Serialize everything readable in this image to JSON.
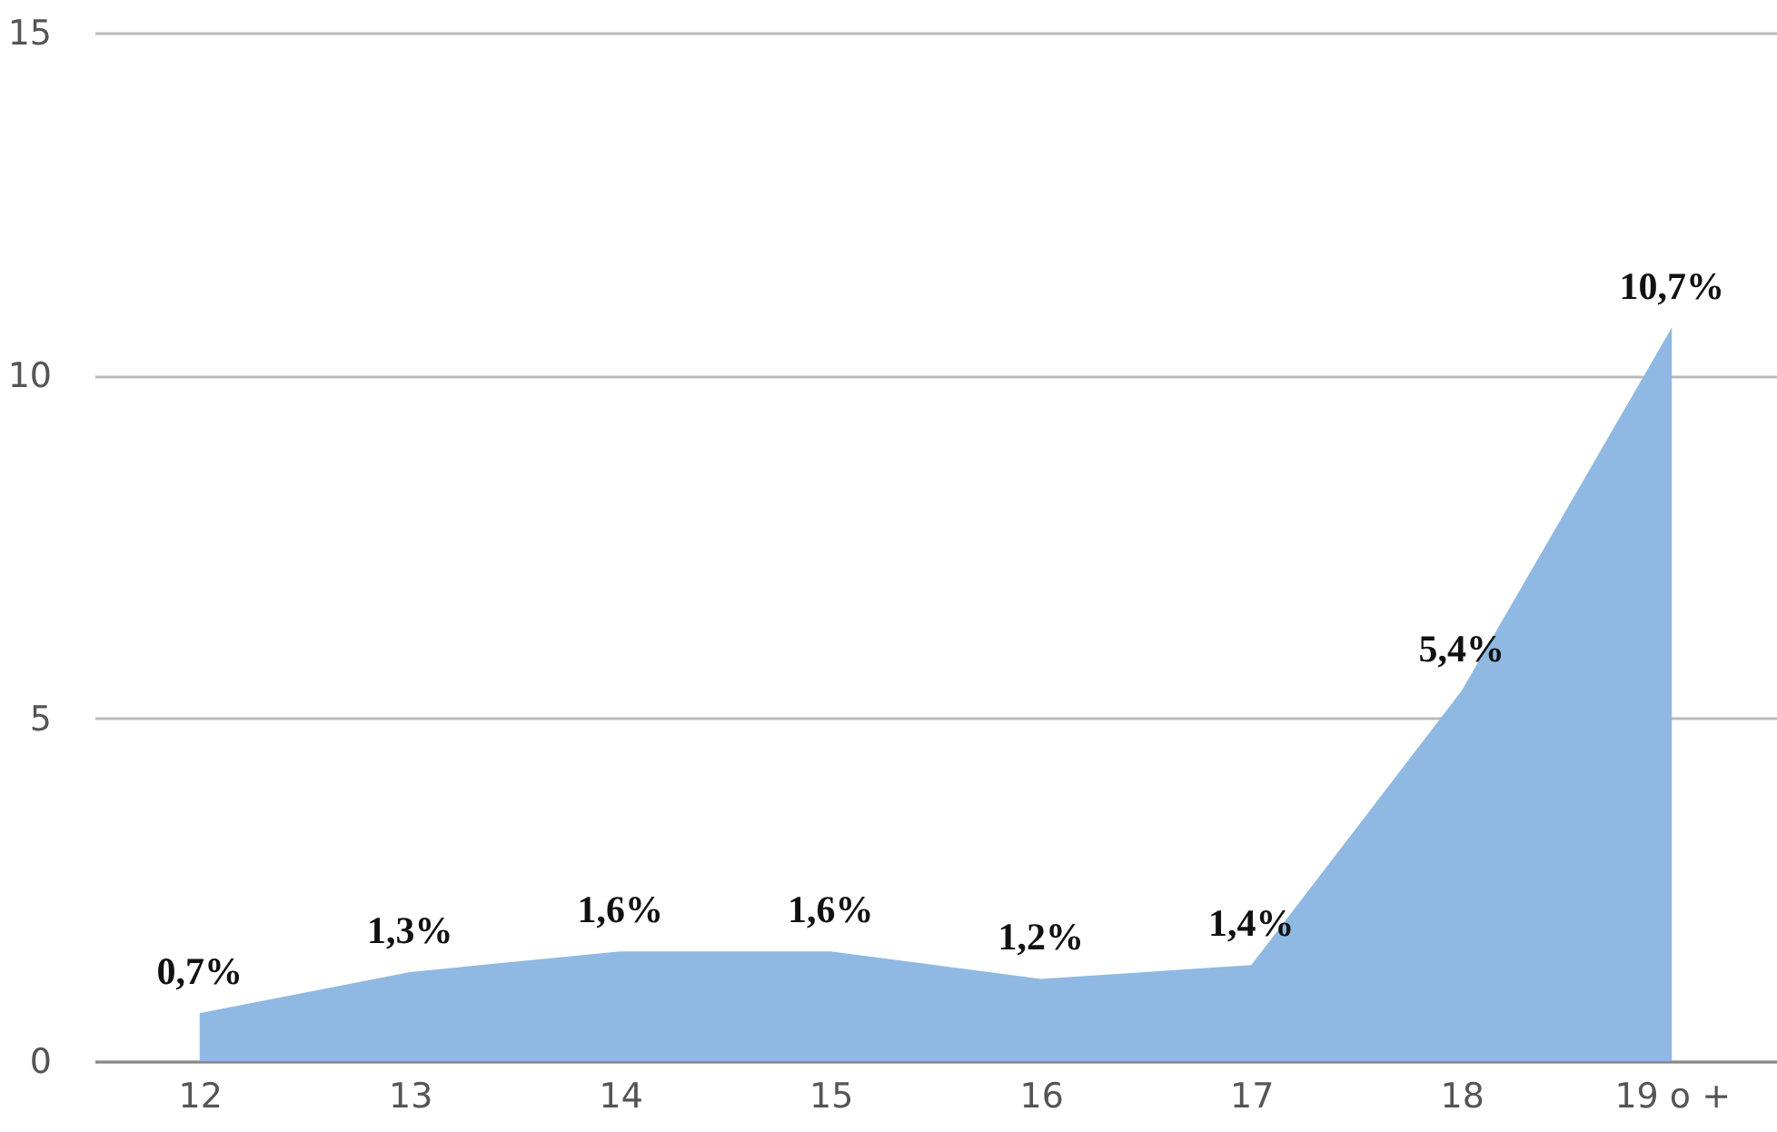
{
  "chart_data": {
    "type": "area",
    "categories": [
      "12",
      "13",
      "14",
      "15",
      "16",
      "17",
      "18",
      "19 o +"
    ],
    "values": [
      0.7,
      1.3,
      1.6,
      1.6,
      1.2,
      1.4,
      5.4,
      10.7
    ],
    "value_labels": [
      "0,7%",
      "1,3%",
      "1,6%",
      "1,6%",
      "1,2%",
      "1,4%",
      "5,4%",
      "10,7%"
    ],
    "color": "#8fb9e3",
    "ylim": [
      0,
      15
    ],
    "yticks": [
      0,
      5,
      10,
      15
    ],
    "grid": "y"
  }
}
